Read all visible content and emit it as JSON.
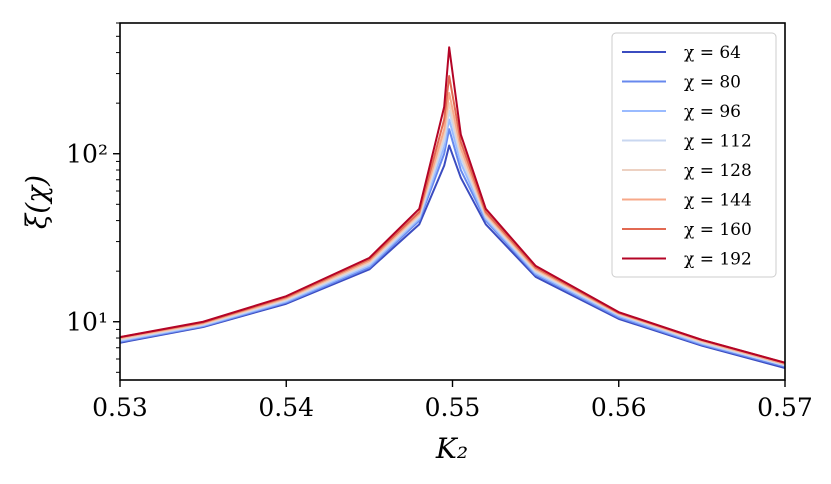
{
  "chart_data": {
    "type": "line",
    "xlabel": "K₂",
    "ylabel": "ξ(χ)",
    "xlim": [
      0.53,
      0.57
    ],
    "ylim": [
      4.5,
      600
    ],
    "yscale": "log",
    "x_ticks": [
      0.53,
      0.54,
      0.55,
      0.56,
      0.57
    ],
    "x_tick_labels": [
      "0.53",
      "0.54",
      "0.55",
      "0.56",
      "0.57"
    ],
    "y_ticks": [
      10,
      100
    ],
    "y_tick_labels": [
      "10¹",
      "10²"
    ],
    "grid": false,
    "legend_placement": "top-right",
    "series": [
      {
        "name": "χ = 64",
        "color": "#3b4cc0",
        "x": [
          0.53,
          0.535,
          0.54,
          0.545,
          0.548,
          0.5495,
          0.5498,
          0.5505,
          0.552,
          0.555,
          0.56,
          0.565,
          0.57
        ],
        "y": [
          7.5,
          9.3,
          12.8,
          20.5,
          38,
          85,
          112,
          72,
          38,
          18.5,
          10.4,
          7.2,
          5.3
        ]
      },
      {
        "name": "χ = 80",
        "color": "#6788ee",
        "x": [
          0.53,
          0.535,
          0.54,
          0.545,
          0.548,
          0.5495,
          0.5498,
          0.5505,
          0.552,
          0.555,
          0.56,
          0.565,
          0.57
        ],
        "y": [
          7.6,
          9.4,
          13.0,
          21.0,
          40,
          100,
          140,
          80,
          40,
          19,
          10.6,
          7.3,
          5.4
        ]
      },
      {
        "name": "χ = 96",
        "color": "#9abbff",
        "x": [
          0.53,
          0.535,
          0.54,
          0.545,
          0.548,
          0.5495,
          0.5498,
          0.5505,
          0.552,
          0.555,
          0.56,
          0.565,
          0.57
        ],
        "y": [
          7.7,
          9.5,
          13.2,
          21.5,
          41,
          110,
          160,
          88,
          41,
          19.4,
          10.8,
          7.4,
          5.5
        ]
      },
      {
        "name": "χ = 112",
        "color": "#c9d7f0",
        "x": [
          0.53,
          0.535,
          0.54,
          0.545,
          0.548,
          0.5495,
          0.5498,
          0.5505,
          0.552,
          0.555,
          0.56,
          0.565,
          0.57
        ],
        "y": [
          7.8,
          9.6,
          13.4,
          22,
          42,
          120,
          180,
          95,
          42,
          19.8,
          11.0,
          7.5,
          5.5
        ]
      },
      {
        "name": "χ = 128",
        "color": "#edd1c2",
        "x": [
          0.53,
          0.535,
          0.54,
          0.545,
          0.548,
          0.5495,
          0.5498,
          0.5505,
          0.552,
          0.555,
          0.56,
          0.565,
          0.57
        ],
        "y": [
          7.9,
          9.7,
          13.6,
          22.5,
          43,
          130,
          200,
          100,
          43,
          20.2,
          11.1,
          7.6,
          5.6
        ]
      },
      {
        "name": "χ = 144",
        "color": "#f7a889",
        "x": [
          0.53,
          0.535,
          0.54,
          0.545,
          0.548,
          0.5495,
          0.5498,
          0.5505,
          0.552,
          0.555,
          0.56,
          0.565,
          0.57
        ],
        "y": [
          8.0,
          9.8,
          13.8,
          23,
          44,
          140,
          230,
          108,
          44,
          20.6,
          11.2,
          7.7,
          5.6
        ]
      },
      {
        "name": "χ = 160",
        "color": "#e26952",
        "x": [
          0.53,
          0.535,
          0.54,
          0.545,
          0.548,
          0.5495,
          0.5498,
          0.5505,
          0.552,
          0.555,
          0.56,
          0.565,
          0.57
        ],
        "y": [
          8.1,
          9.9,
          14.0,
          23.5,
          45,
          160,
          290,
          118,
          45,
          21,
          11.3,
          7.8,
          5.7
        ]
      },
      {
        "name": "χ = 192",
        "color": "#b40426",
        "x": [
          0.53,
          0.535,
          0.54,
          0.545,
          0.548,
          0.5495,
          0.5498,
          0.5505,
          0.552,
          0.555,
          0.56,
          0.565,
          0.57
        ],
        "y": [
          8.1,
          10.0,
          14.2,
          24,
          47,
          190,
          430,
          130,
          47,
          21.5,
          11.4,
          7.8,
          5.7
        ]
      }
    ]
  }
}
